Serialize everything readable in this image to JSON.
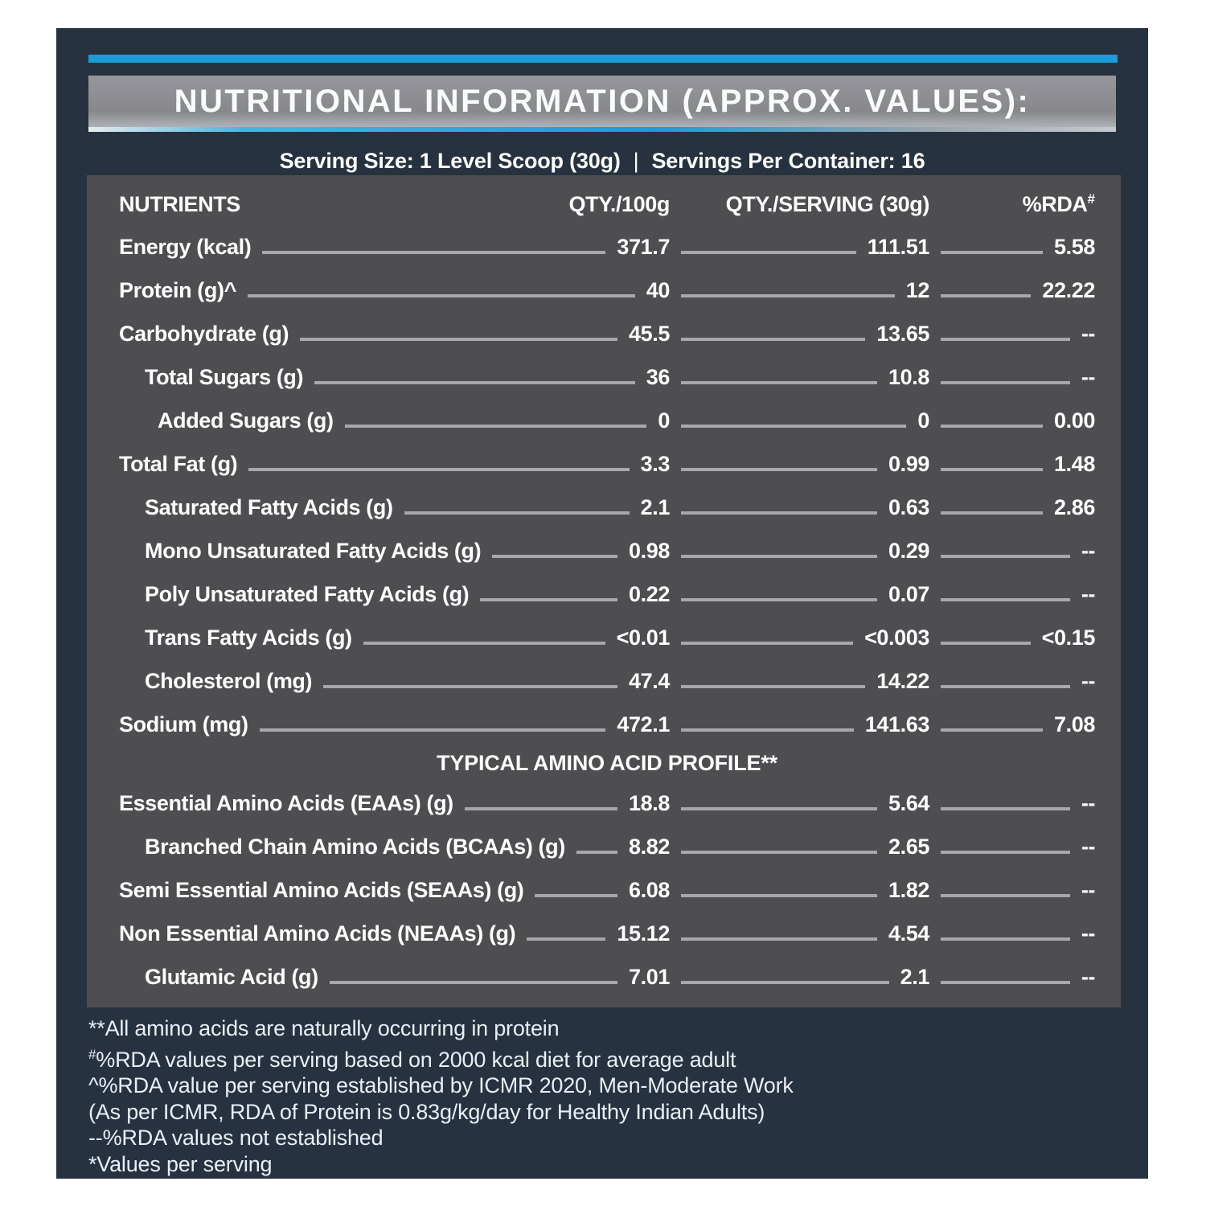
{
  "colors": {
    "accent_blue": "#1B9CD8",
    "panel_navy": "#26323F",
    "title_bar_gray": "#8B8B8F",
    "table_gray": "#4E4E50",
    "leader_line": "#A8A8AA",
    "text_white": "#FFFFFF",
    "page_background": "#FFFFFF"
  },
  "header": {
    "title": "NUTRITIONAL INFORMATION (APPROX. VALUES):",
    "serving_size_label": "Serving Size: 1 Level Scoop (30g)",
    "separator": "|",
    "servings_label": "Servings Per Container: 16"
  },
  "table": {
    "columns": {
      "nutrients": "NUTRIENTS",
      "qty100": "QTY./100g",
      "qtyserv": "QTY./SERVING (30g)",
      "rda": "%RDA",
      "rda_sup": "#"
    },
    "amino_header": "TYPICAL AMINO ACID PROFILE**",
    "main_rows": [
      {
        "label": "Energy (kcal)",
        "indent": 0,
        "q100": "371.7",
        "qserv": "111.51",
        "rda": "5.58"
      },
      {
        "label": "Protein (g)^",
        "indent": 0,
        "q100": "40",
        "qserv": "12",
        "rda": "22.22"
      },
      {
        "label": "Carbohydrate (g)",
        "indent": 0,
        "q100": "45.5",
        "qserv": "13.65",
        "rda": "--"
      },
      {
        "label": "Total Sugars (g)",
        "indent": 1,
        "q100": "36",
        "qserv": "10.8",
        "rda": "--"
      },
      {
        "label": "Added Sugars (g)",
        "indent": 2,
        "q100": "0",
        "qserv": "0",
        "rda": "0.00"
      },
      {
        "label": "Total Fat (g)",
        "indent": 0,
        "q100": "3.3",
        "qserv": "0.99",
        "rda": "1.48"
      },
      {
        "label": "Saturated Fatty Acids (g)",
        "indent": 1,
        "q100": "2.1",
        "qserv": "0.63",
        "rda": "2.86"
      },
      {
        "label": "Mono Unsaturated Fatty Acids (g)",
        "indent": 1,
        "q100": "0.98",
        "qserv": "0.29",
        "rda": "--"
      },
      {
        "label": "Poly Unsaturated Fatty Acids (g)",
        "indent": 1,
        "q100": "0.22",
        "qserv": "0.07",
        "rda": "--"
      },
      {
        "label": "Trans Fatty Acids (g)",
        "indent": 1,
        "q100": "<0.01",
        "qserv": "<0.003",
        "rda": "<0.15"
      },
      {
        "label": "Cholesterol (mg)",
        "indent": 1,
        "q100": "47.4",
        "qserv": "14.22",
        "rda": "--"
      },
      {
        "label": "Sodium (mg)",
        "indent": 0,
        "q100": "472.1",
        "qserv": "141.63",
        "rda": "7.08"
      }
    ],
    "amino_rows": [
      {
        "label": "Essential Amino Acids (EAAs) (g)",
        "indent": 0,
        "q100": "18.8",
        "qserv": "5.64",
        "rda": "--"
      },
      {
        "label": "Branched Chain Amino Acids (BCAAs) (g)",
        "indent": 1,
        "q100": "8.82",
        "qserv": "2.65",
        "rda": "--"
      },
      {
        "label": "Semi Essential Amino Acids (SEAAs) (g)",
        "indent": 0,
        "q100": "6.08",
        "qserv": "1.82",
        "rda": "--"
      },
      {
        "label": "Non Essential Amino Acids (NEAAs) (g)",
        "indent": 0,
        "q100": "15.12",
        "qserv": "4.54",
        "rda": "--"
      },
      {
        "label": "Glutamic Acid (g)",
        "indent": 1,
        "q100": "7.01",
        "qserv": "2.1",
        "rda": "--"
      }
    ]
  },
  "footnotes": [
    {
      "sup": "",
      "text": "**All amino acids are naturally occurring in protein"
    },
    {
      "sup": "#",
      "text": "%RDA values per serving based on 2000 kcal diet for average adult"
    },
    {
      "sup": "",
      "text": "^%RDA value per serving established by ICMR 2020, Men-Moderate Work"
    },
    {
      "sup": "",
      "text": "(As per ICMR, RDA of Protein is 0.83g/kg/day for Healthy Indian Adults)"
    },
    {
      "sup": "",
      "text": "--%RDA values not established"
    },
    {
      "sup": "",
      "text": "*Values per serving"
    }
  ]
}
